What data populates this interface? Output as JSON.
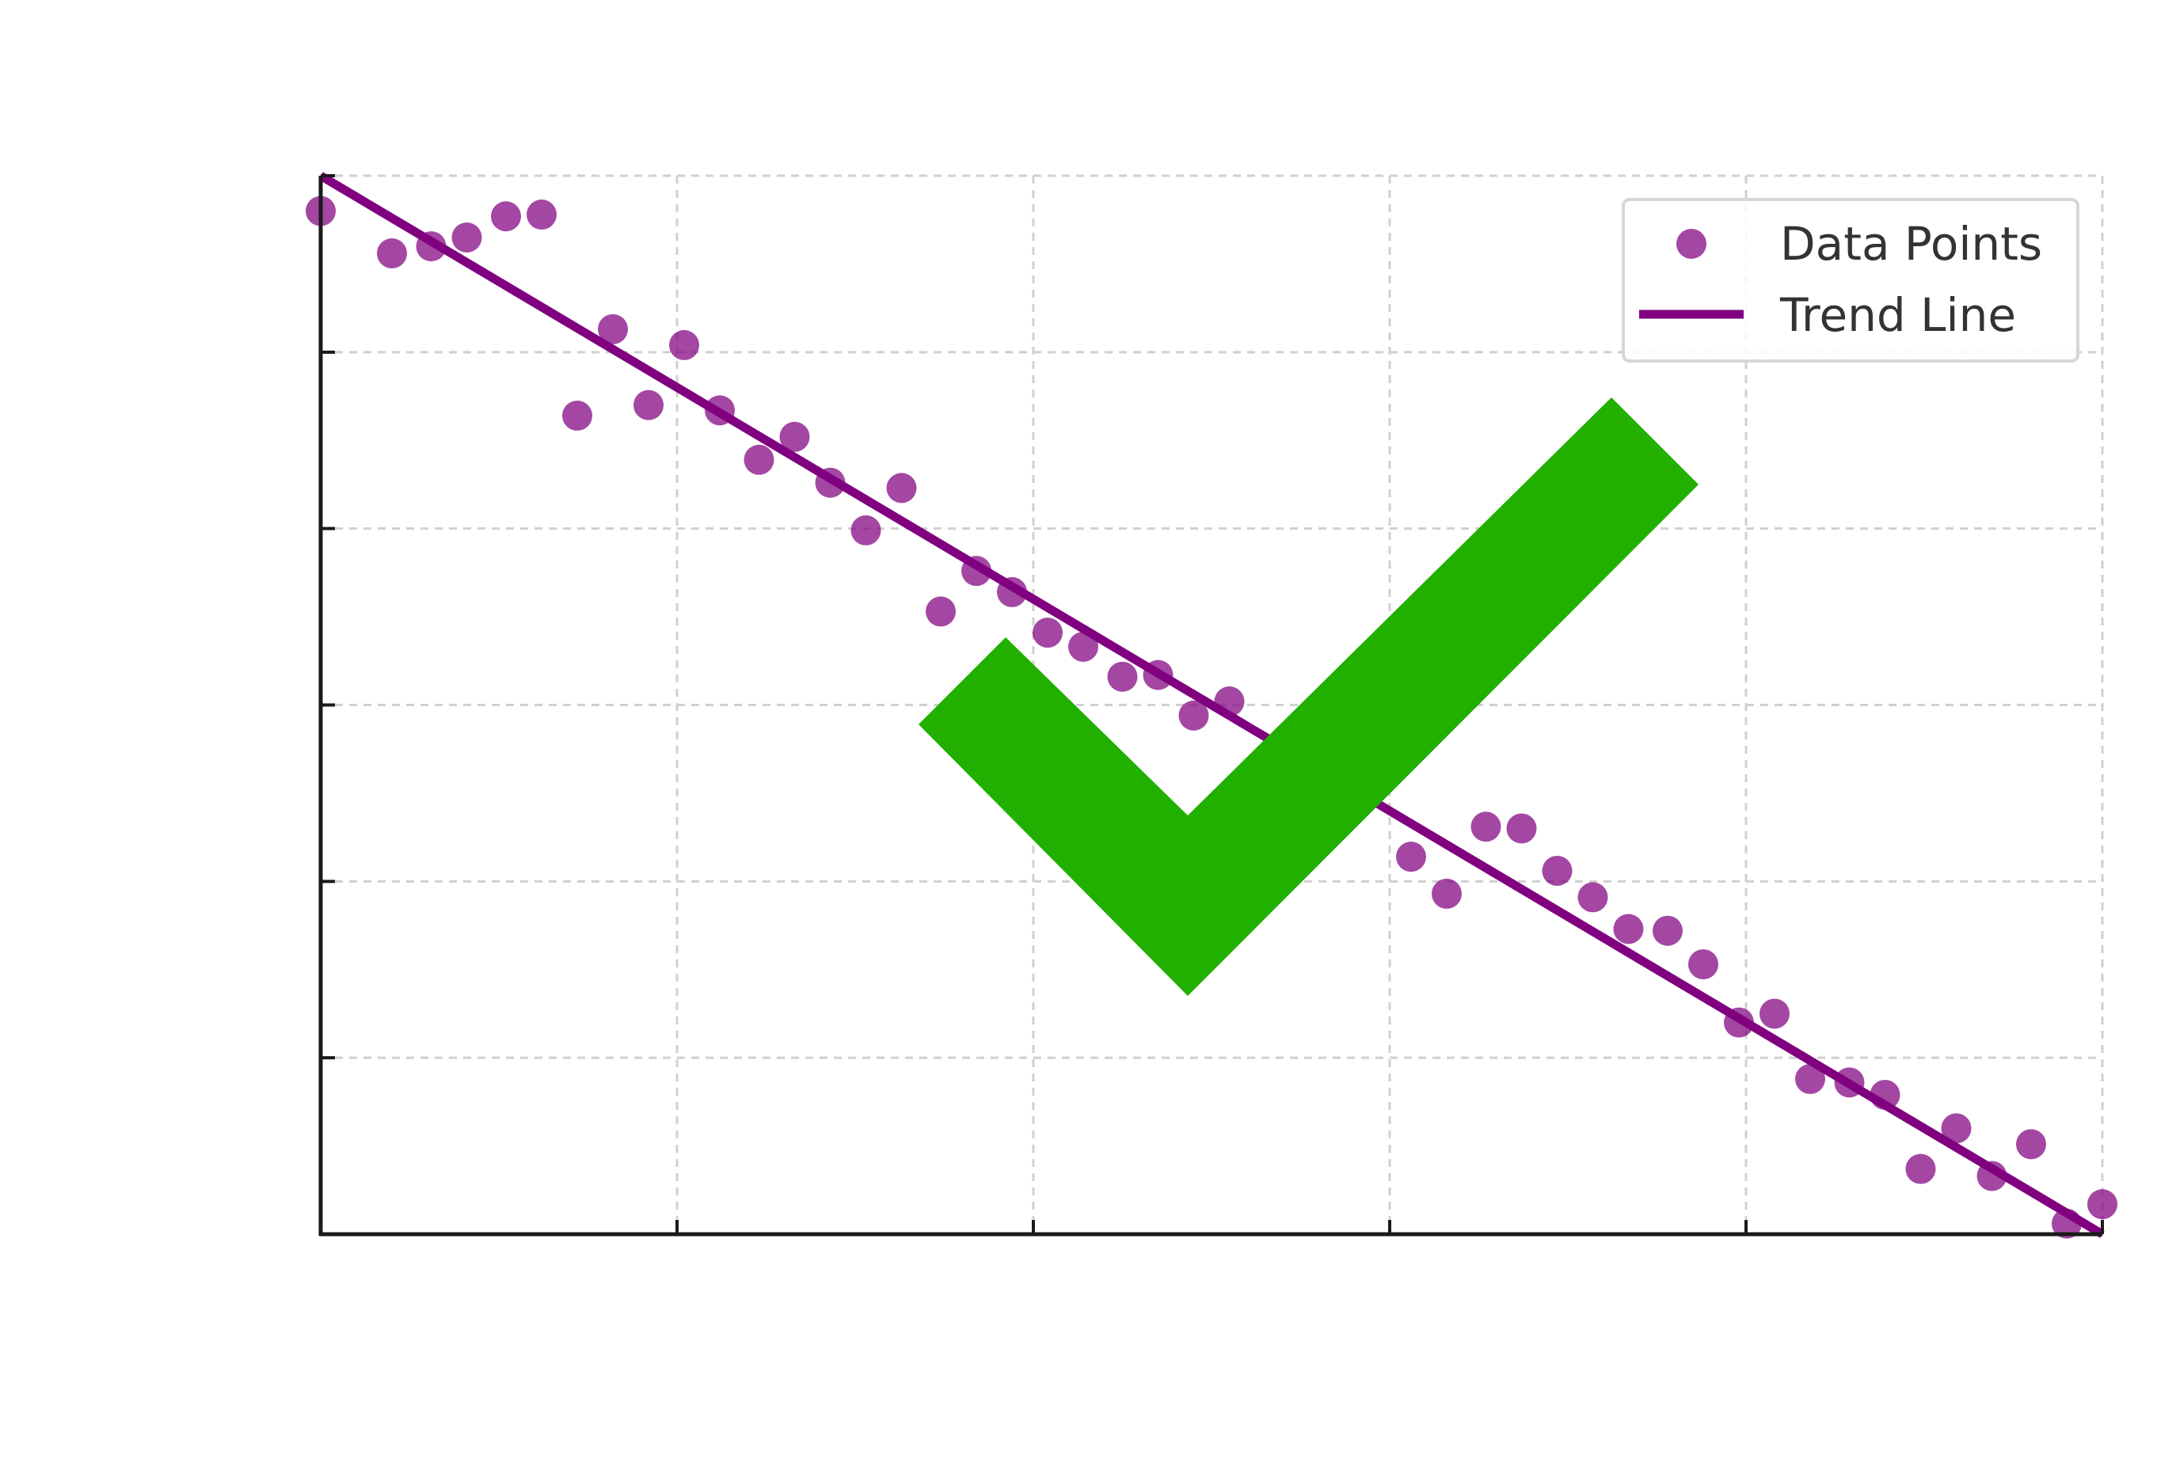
{
  "chart_data": {
    "type": "scatter",
    "title": "",
    "xlabel": "",
    "ylabel": "",
    "xlim": [
      0,
      5
    ],
    "ylim": [
      0,
      6
    ],
    "x_ticks": [
      0,
      1,
      2,
      3,
      4,
      5
    ],
    "y_ticks": [
      0,
      1,
      2,
      3,
      4,
      5,
      6
    ],
    "grid": true,
    "legend_placement": "top-right",
    "series": [
      {
        "name": "Data Points",
        "kind": "scatter",
        "color": "#800080",
        "points": [
          [
            0.0,
            5.8
          ],
          [
            0.2,
            5.56
          ],
          [
            0.31,
            5.6
          ],
          [
            0.41,
            5.65
          ],
          [
            0.52,
            5.77
          ],
          [
            0.62,
            5.78
          ],
          [
            0.72,
            4.64
          ],
          [
            0.82,
            5.13
          ],
          [
            0.92,
            4.7
          ],
          [
            1.02,
            5.04
          ],
          [
            1.12,
            4.67
          ],
          [
            1.23,
            4.39
          ],
          [
            1.33,
            4.52
          ],
          [
            1.43,
            4.26
          ],
          [
            1.53,
            3.99
          ],
          [
            1.63,
            4.23
          ],
          [
            1.74,
            3.53
          ],
          [
            1.84,
            3.76
          ],
          [
            1.94,
            3.64
          ],
          [
            2.04,
            3.41
          ],
          [
            2.14,
            3.33
          ],
          [
            2.25,
            3.16
          ],
          [
            2.35,
            3.17
          ],
          [
            2.45,
            2.94
          ],
          [
            2.55,
            3.02
          ],
          [
            3.06,
            2.14
          ],
          [
            3.16,
            1.93
          ],
          [
            3.27,
            2.31
          ],
          [
            3.37,
            2.3
          ],
          [
            3.47,
            2.06
          ],
          [
            3.57,
            1.91
          ],
          [
            3.67,
            1.73
          ],
          [
            3.78,
            1.72
          ],
          [
            3.88,
            1.53
          ],
          [
            3.98,
            1.2
          ],
          [
            4.08,
            1.25
          ],
          [
            4.18,
            0.88
          ],
          [
            4.29,
            0.86
          ],
          [
            4.39,
            0.79
          ],
          [
            4.49,
            0.37
          ],
          [
            4.59,
            0.6
          ],
          [
            4.69,
            0.33
          ],
          [
            4.8,
            0.51
          ],
          [
            4.9,
            0.06
          ],
          [
            5.0,
            0.17
          ]
        ]
      },
      {
        "name": "Trend Line",
        "kind": "line",
        "color": "#800080",
        "x": [
          0,
          5
        ],
        "y": [
          6.0,
          0.0
        ]
      }
    ]
  },
  "overlay": {
    "icon": "check-mark-icon",
    "color": "#22b000"
  }
}
